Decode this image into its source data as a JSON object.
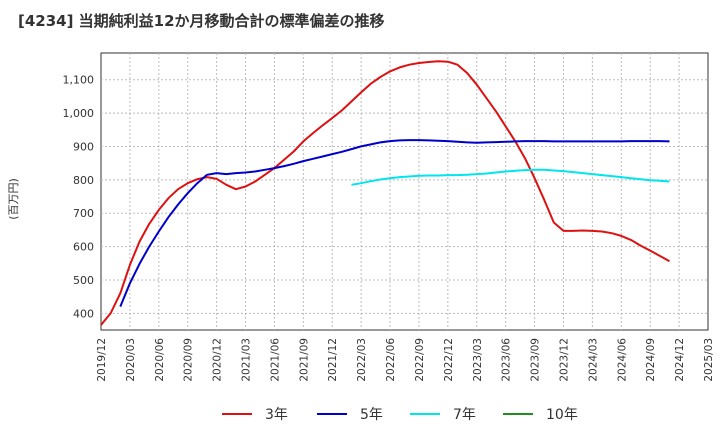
{
  "chart_data": {
    "type": "line",
    "title": "[4234]  当期純利益12か月移動合計の標準偏差の推移",
    "ylabel": "(百万円)",
    "xlabel": "",
    "ylim": [
      350,
      1180
    ],
    "yticks": [
      400,
      500,
      600,
      700,
      800,
      900,
      1000,
      1100
    ],
    "ytick_labels": [
      "400",
      "500",
      "600",
      "700",
      "800",
      "900",
      "1,000",
      "1,100"
    ],
    "x_start": "2019/12",
    "x_end": "2025/03",
    "xtick_labels": [
      "2019/12",
      "2020/03",
      "2020/06",
      "2020/09",
      "2020/12",
      "2021/03",
      "2021/06",
      "2021/09",
      "2021/12",
      "2022/03",
      "2022/06",
      "2022/09",
      "2022/12",
      "2023/03",
      "2023/06",
      "2023/09",
      "2023/12",
      "2024/03",
      "2024/06",
      "2024/09",
      "2024/12",
      "2025/03"
    ],
    "grid": true,
    "legend_position": "bottom",
    "series": [
      {
        "name": "3年",
        "color": "#dd1111",
        "points": [
          [
            0,
            365
          ],
          [
            1,
            400
          ],
          [
            2,
            460
          ],
          [
            3,
            545
          ],
          [
            4,
            615
          ],
          [
            5,
            668
          ],
          [
            6,
            710
          ],
          [
            7,
            745
          ],
          [
            8,
            772
          ],
          [
            9,
            790
          ],
          [
            10,
            802
          ],
          [
            11,
            808
          ],
          [
            12,
            803
          ],
          [
            13,
            785
          ],
          [
            14,
            772
          ],
          [
            15,
            780
          ],
          [
            16,
            795
          ],
          [
            17,
            815
          ],
          [
            18,
            835
          ],
          [
            19,
            860
          ],
          [
            20,
            885
          ],
          [
            21,
            915
          ],
          [
            22,
            940
          ],
          [
            23,
            963
          ],
          [
            24,
            985
          ],
          [
            25,
            1008
          ],
          [
            26,
            1035
          ],
          [
            27,
            1062
          ],
          [
            28,
            1088
          ],
          [
            29,
            1108
          ],
          [
            30,
            1125
          ],
          [
            31,
            1137
          ],
          [
            32,
            1145
          ],
          [
            33,
            1150
          ],
          [
            34,
            1153
          ],
          [
            35,
            1155
          ],
          [
            36,
            1154
          ],
          [
            37,
            1145
          ],
          [
            38,
            1120
          ],
          [
            39,
            1085
          ],
          [
            40,
            1045
          ],
          [
            41,
            1005
          ],
          [
            42,
            960
          ],
          [
            43,
            915
          ],
          [
            44,
            865
          ],
          [
            45,
            805
          ],
          [
            46,
            740
          ],
          [
            47,
            672
          ],
          [
            48,
            647
          ],
          [
            49,
            647
          ],
          [
            50,
            648
          ],
          [
            51,
            647
          ],
          [
            52,
            645
          ],
          [
            53,
            640
          ],
          [
            54,
            632
          ],
          [
            55,
            620
          ],
          [
            56,
            603
          ],
          [
            57,
            588
          ],
          [
            58,
            572
          ],
          [
            59,
            556
          ]
        ]
      },
      {
        "name": "5年",
        "color": "#0000cc",
        "points": [
          [
            2,
            420
          ],
          [
            3,
            490
          ],
          [
            4,
            548
          ],
          [
            5,
            600
          ],
          [
            6,
            645
          ],
          [
            7,
            688
          ],
          [
            8,
            726
          ],
          [
            9,
            760
          ],
          [
            10,
            790
          ],
          [
            11,
            815
          ],
          [
            12,
            820
          ],
          [
            13,
            817
          ],
          [
            14,
            820
          ],
          [
            15,
            822
          ],
          [
            16,
            825
          ],
          [
            17,
            830
          ],
          [
            18,
            835
          ],
          [
            19,
            841
          ],
          [
            20,
            848
          ],
          [
            21,
            856
          ],
          [
            22,
            863
          ],
          [
            23,
            870
          ],
          [
            24,
            877
          ],
          [
            25,
            884
          ],
          [
            26,
            892
          ],
          [
            27,
            900
          ],
          [
            28,
            906
          ],
          [
            29,
            912
          ],
          [
            30,
            916
          ],
          [
            31,
            918
          ],
          [
            32,
            919
          ],
          [
            33,
            919
          ],
          [
            34,
            918
          ],
          [
            35,
            917
          ],
          [
            36,
            916
          ],
          [
            37,
            914
          ],
          [
            38,
            912
          ],
          [
            39,
            911
          ],
          [
            40,
            912
          ],
          [
            41,
            913
          ],
          [
            42,
            914
          ],
          [
            43,
            915
          ],
          [
            44,
            916
          ],
          [
            45,
            916
          ],
          [
            46,
            916
          ],
          [
            47,
            915
          ],
          [
            48,
            915
          ],
          [
            49,
            915
          ],
          [
            50,
            915
          ],
          [
            51,
            915
          ],
          [
            52,
            915
          ],
          [
            53,
            915
          ],
          [
            54,
            915
          ],
          [
            55,
            916
          ],
          [
            56,
            916
          ],
          [
            57,
            916
          ],
          [
            58,
            916
          ],
          [
            59,
            915
          ]
        ]
      },
      {
        "name": "7年",
        "color": "#00e5ee",
        "points": [
          [
            26,
            785
          ],
          [
            27,
            790
          ],
          [
            28,
            796
          ],
          [
            29,
            801
          ],
          [
            30,
            805
          ],
          [
            31,
            808
          ],
          [
            32,
            810
          ],
          [
            33,
            812
          ],
          [
            34,
            813
          ],
          [
            35,
            813
          ],
          [
            36,
            814
          ],
          [
            37,
            814
          ],
          [
            38,
            815
          ],
          [
            39,
            817
          ],
          [
            40,
            819
          ],
          [
            41,
            822
          ],
          [
            42,
            825
          ],
          [
            43,
            827
          ],
          [
            44,
            829
          ],
          [
            45,
            830
          ],
          [
            46,
            830
          ],
          [
            47,
            828
          ],
          [
            48,
            826
          ],
          [
            49,
            823
          ],
          [
            50,
            820
          ],
          [
            51,
            817
          ],
          [
            52,
            814
          ],
          [
            53,
            811
          ],
          [
            54,
            808
          ],
          [
            55,
            805
          ],
          [
            56,
            802
          ],
          [
            57,
            799
          ],
          [
            58,
            797
          ],
          [
            59,
            795
          ]
        ]
      },
      {
        "name": "10年",
        "color": "#228b22",
        "points": []
      }
    ]
  }
}
